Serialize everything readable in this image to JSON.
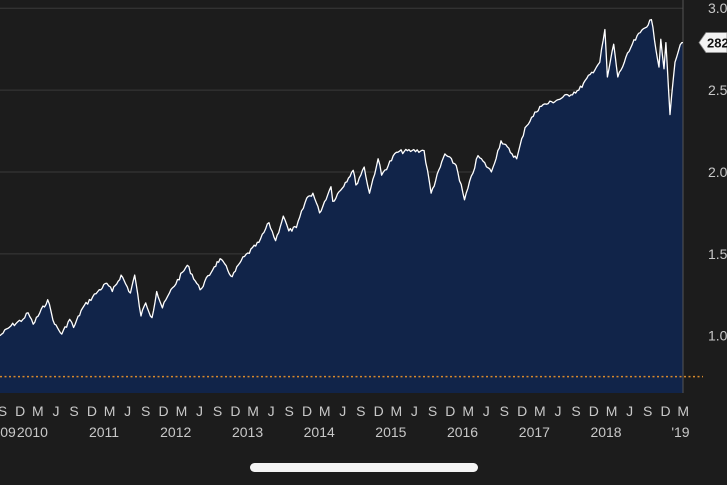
{
  "chart_data": {
    "type": "area",
    "title": "",
    "xlabel": "",
    "ylabel": "",
    "ylim": [
      0.65,
      3.05
    ],
    "xlim": [
      "2009-08-20",
      "2019-02-28"
    ],
    "y_ticks": [
      "3.0",
      "2.5",
      "2.0",
      "1.5",
      "1.0"
    ],
    "y_tick_values": [
      3.0,
      2.5,
      2.0,
      1.5,
      1.0
    ],
    "x_month_ticks": [
      {
        "date": "2009-09-01",
        "label": "S"
      },
      {
        "date": "2009-12-01",
        "label": "D"
      },
      {
        "date": "2010-03-01",
        "label": "M"
      },
      {
        "date": "2010-06-01",
        "label": "J"
      },
      {
        "date": "2010-09-01",
        "label": "S"
      },
      {
        "date": "2010-12-01",
        "label": "D"
      },
      {
        "date": "2011-03-01",
        "label": "M"
      },
      {
        "date": "2011-06-01",
        "label": "J"
      },
      {
        "date": "2011-09-01",
        "label": "S"
      },
      {
        "date": "2011-12-01",
        "label": "D"
      },
      {
        "date": "2012-03-01",
        "label": "M"
      },
      {
        "date": "2012-06-01",
        "label": "J"
      },
      {
        "date": "2012-09-01",
        "label": "S"
      },
      {
        "date": "2012-12-01",
        "label": "D"
      },
      {
        "date": "2013-03-01",
        "label": "M"
      },
      {
        "date": "2013-06-01",
        "label": "J"
      },
      {
        "date": "2013-09-01",
        "label": "S"
      },
      {
        "date": "2013-12-01",
        "label": "D"
      },
      {
        "date": "2014-03-01",
        "label": "M"
      },
      {
        "date": "2014-06-01",
        "label": "J"
      },
      {
        "date": "2014-09-01",
        "label": "S"
      },
      {
        "date": "2014-12-01",
        "label": "D"
      },
      {
        "date": "2015-03-01",
        "label": "M"
      },
      {
        "date": "2015-06-01",
        "label": "J"
      },
      {
        "date": "2015-09-01",
        "label": "S"
      },
      {
        "date": "2015-12-01",
        "label": "D"
      },
      {
        "date": "2016-03-01",
        "label": "M"
      },
      {
        "date": "2016-06-01",
        "label": "J"
      },
      {
        "date": "2016-09-01",
        "label": "S"
      },
      {
        "date": "2016-12-01",
        "label": "D"
      },
      {
        "date": "2017-03-01",
        "label": "M"
      },
      {
        "date": "2017-06-01",
        "label": "J"
      },
      {
        "date": "2017-09-01",
        "label": "S"
      },
      {
        "date": "2017-12-01",
        "label": "D"
      },
      {
        "date": "2018-03-01",
        "label": "M"
      },
      {
        "date": "2018-06-01",
        "label": "J"
      },
      {
        "date": "2018-09-01",
        "label": "S"
      },
      {
        "date": "2018-12-01",
        "label": "D"
      },
      {
        "date": "2019-03-01",
        "label": "M"
      }
    ],
    "x_year_ticks": [
      {
        "date": "2009-08-01",
        "label": "09"
      },
      {
        "date": "2010-02-01",
        "label": "2010"
      },
      {
        "date": "2011-02-01",
        "label": "2011"
      },
      {
        "date": "2012-02-01",
        "label": "2012"
      },
      {
        "date": "2013-02-01",
        "label": "2013"
      },
      {
        "date": "2014-02-01",
        "label": "2014"
      },
      {
        "date": "2015-02-01",
        "label": "2015"
      },
      {
        "date": "2016-02-01",
        "label": "2016"
      },
      {
        "date": "2017-02-01",
        "label": "2017"
      },
      {
        "date": "2018-02-01",
        "label": "2018"
      },
      {
        "date": "2019-02-15",
        "label": "'19"
      }
    ],
    "series": [
      {
        "points": [
          [
            "2009-08-20",
            1.0
          ],
          [
            "2009-10-15",
            1.06
          ],
          [
            "2009-12-15",
            1.1
          ],
          [
            "2010-01-10",
            1.14
          ],
          [
            "2010-02-05",
            1.07
          ],
          [
            "2010-04-20",
            1.22
          ],
          [
            "2010-05-25",
            1.07
          ],
          [
            "2010-07-01",
            1.01
          ],
          [
            "2010-08-10",
            1.1
          ],
          [
            "2010-08-30",
            1.05
          ],
          [
            "2010-10-15",
            1.17
          ],
          [
            "2010-12-31",
            1.27
          ],
          [
            "2011-02-15",
            1.32
          ],
          [
            "2011-03-15",
            1.27
          ],
          [
            "2011-04-29",
            1.37
          ],
          [
            "2011-06-15",
            1.26
          ],
          [
            "2011-07-07",
            1.37
          ],
          [
            "2011-08-08",
            1.12
          ],
          [
            "2011-09-01",
            1.2
          ],
          [
            "2011-10-03",
            1.11
          ],
          [
            "2011-10-27",
            1.27
          ],
          [
            "2011-11-25",
            1.17
          ],
          [
            "2011-12-31",
            1.26
          ],
          [
            "2012-03-31",
            1.43
          ],
          [
            "2012-06-04",
            1.28
          ],
          [
            "2012-08-15",
            1.42
          ],
          [
            "2012-09-14",
            1.47
          ],
          [
            "2012-11-15",
            1.36
          ],
          [
            "2012-12-31",
            1.46
          ],
          [
            "2013-03-31",
            1.57
          ],
          [
            "2013-05-21",
            1.69
          ],
          [
            "2013-06-24",
            1.58
          ],
          [
            "2013-08-02",
            1.73
          ],
          [
            "2013-08-30",
            1.64
          ],
          [
            "2013-10-08",
            1.66
          ],
          [
            "2013-11-29",
            1.84
          ],
          [
            "2013-12-31",
            1.87
          ],
          [
            "2014-02-03",
            1.75
          ],
          [
            "2014-04-02",
            1.91
          ],
          [
            "2014-04-11",
            1.82
          ],
          [
            "2014-07-24",
            2.01
          ],
          [
            "2014-08-07",
            1.92
          ],
          [
            "2014-09-18",
            2.03
          ],
          [
            "2014-10-15",
            1.87
          ],
          [
            "2014-11-28",
            2.08
          ],
          [
            "2014-12-16",
            1.98
          ],
          [
            "2015-03-01",
            2.12
          ],
          [
            "2015-05-20",
            2.13
          ],
          [
            "2015-07-20",
            2.13
          ],
          [
            "2015-08-25",
            1.87
          ],
          [
            "2015-11-03",
            2.11
          ],
          [
            "2015-12-31",
            2.04
          ],
          [
            "2016-02-11",
            1.83
          ],
          [
            "2016-04-20",
            2.1
          ],
          [
            "2016-06-27",
            2.0
          ],
          [
            "2016-08-15",
            2.19
          ],
          [
            "2016-11-03",
            2.08
          ],
          [
            "2016-12-15",
            2.27
          ],
          [
            "2017-03-01",
            2.4
          ],
          [
            "2017-06-19",
            2.45
          ],
          [
            "2017-09-15",
            2.5
          ],
          [
            "2017-12-31",
            2.67
          ],
          [
            "2018-01-26",
            2.87
          ],
          [
            "2018-02-08",
            2.58
          ],
          [
            "2018-03-12",
            2.78
          ],
          [
            "2018-04-02",
            2.58
          ],
          [
            "2018-06-15",
            2.78
          ],
          [
            "2018-07-25",
            2.85
          ],
          [
            "2018-09-20",
            2.93
          ],
          [
            "2018-10-29",
            2.64
          ],
          [
            "2018-11-07",
            2.81
          ],
          [
            "2018-11-23",
            2.63
          ],
          [
            "2018-12-03",
            2.79
          ],
          [
            "2018-12-24",
            2.35
          ],
          [
            "2019-01-18",
            2.67
          ],
          [
            "2019-02-05",
            2.74
          ],
          [
            "2019-02-22",
            2.79
          ],
          [
            "2019-02-28",
            2.79
          ]
        ]
      }
    ],
    "reference_line": {
      "y": 0.75,
      "color": "#d98a2b",
      "style": "dotted"
    },
    "last_value_label": "282"
  },
  "colors": {
    "background": "#1c1c1c",
    "area_fill": "#112449",
    "line": "#ffffff",
    "grid": "#3a3a3a",
    "text": "#c8c8c8"
  }
}
